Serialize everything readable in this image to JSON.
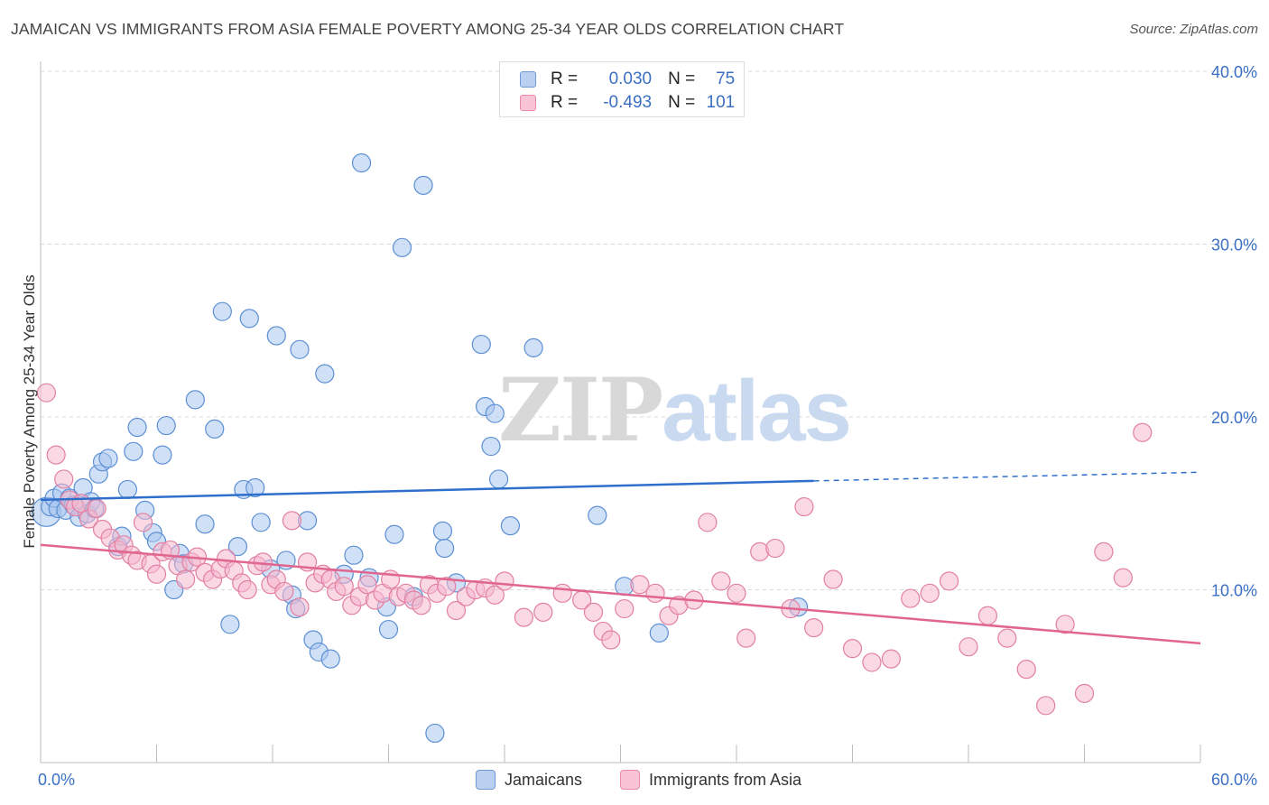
{
  "title": "JAMAICAN VS IMMIGRANTS FROM ASIA FEMALE POVERTY AMONG 25-34 YEAR OLDS CORRELATION CHART",
  "source": "Source: ZipAtlas.com",
  "watermark": {
    "zip": "ZIP",
    "atlas": "atlas"
  },
  "legend": {
    "r_label": "R =",
    "n_label": "N =",
    "rows": [
      {
        "r": "0.030",
        "n": "75",
        "fill": "#b9d0f0",
        "stroke": "#6f9ad6"
      },
      {
        "r": "-0.493",
        "n": "101",
        "fill": "#f8c4d6",
        "stroke": "#e88aab"
      }
    ]
  },
  "bottom_legend": [
    "Jamaicans",
    "Immigrants from Asia"
  ],
  "colors": {
    "jamaicans_fill": "#a9c6ee",
    "jamaicans_stroke": "#5b8fd4",
    "asia_fill": "#f6b8cd",
    "asia_stroke": "#e27fa3",
    "jamaicans_line": "#2f6fcc",
    "asia_line": "#e0668f",
    "tick_text": "#3a6fc4"
  },
  "chart_data": {
    "type": "scatter",
    "title": "JAMAICAN VS IMMIGRANTS FROM ASIA FEMALE POVERTY AMONG 25-34 YEAR OLDS CORRELATION CHART",
    "xlabel": "",
    "ylabel": "Female Poverty Among 25-34 Year Olds",
    "xlim": [
      0,
      60
    ],
    "ylim": [
      0,
      42
    ],
    "x_tick_labels": [
      {
        "value": 0,
        "label": "0.0%"
      },
      {
        "value": 60,
        "label": "60.0%"
      }
    ],
    "y_tick_labels": [
      {
        "value": 10,
        "label": "10.0%"
      },
      {
        "value": 20,
        "label": "20.0%"
      },
      {
        "value": 30,
        "label": "30.0%"
      },
      {
        "value": 40,
        "label": "40.0%"
      }
    ],
    "grid": true,
    "legend_position": "top-center",
    "series": [
      {
        "name": "Jamaicans",
        "R": 0.03,
        "N": 75,
        "trend": {
          "x0": 0,
          "y0": 15.2,
          "x1": 40,
          "y1": 16.3,
          "dashed_to": 60,
          "y_dashed_end": 16.8
        },
        "points": [
          [
            0.3,
            14.5
          ],
          [
            0.5,
            14.8
          ],
          [
            0.7,
            15.3
          ],
          [
            0.9,
            14.7
          ],
          [
            1.1,
            15.6
          ],
          [
            1.3,
            14.6
          ],
          [
            1.5,
            15.3
          ],
          [
            1.7,
            14.9
          ],
          [
            2.0,
            14.2
          ],
          [
            2.2,
            15.9
          ],
          [
            2.4,
            14.4
          ],
          [
            2.6,
            15.1
          ],
          [
            2.8,
            14.7
          ],
          [
            3.0,
            16.7
          ],
          [
            3.2,
            17.4
          ],
          [
            3.5,
            17.6
          ],
          [
            4.0,
            12.5
          ],
          [
            4.2,
            13.1
          ],
          [
            4.5,
            15.8
          ],
          [
            4.8,
            18.0
          ],
          [
            5.0,
            19.4
          ],
          [
            5.4,
            14.6
          ],
          [
            5.8,
            13.3
          ],
          [
            6.0,
            12.8
          ],
          [
            6.3,
            17.8
          ],
          [
            6.5,
            19.5
          ],
          [
            6.9,
            10.0
          ],
          [
            7.2,
            12.1
          ],
          [
            7.4,
            11.5
          ],
          [
            8.0,
            21.0
          ],
          [
            8.5,
            13.8
          ],
          [
            9.0,
            19.3
          ],
          [
            9.4,
            26.1
          ],
          [
            9.8,
            8.0
          ],
          [
            10.2,
            12.5
          ],
          [
            10.5,
            15.8
          ],
          [
            10.8,
            25.7
          ],
          [
            11.1,
            15.9
          ],
          [
            11.4,
            13.9
          ],
          [
            11.9,
            11.2
          ],
          [
            12.2,
            24.7
          ],
          [
            12.7,
            11.7
          ],
          [
            13.0,
            9.7
          ],
          [
            13.2,
            8.9
          ],
          [
            13.4,
            23.9
          ],
          [
            13.8,
            14.0
          ],
          [
            14.1,
            7.1
          ],
          [
            14.4,
            6.4
          ],
          [
            14.7,
            22.5
          ],
          [
            15.0,
            6.0
          ],
          [
            15.7,
            10.9
          ],
          [
            16.2,
            12.0
          ],
          [
            16.6,
            34.7
          ],
          [
            17.0,
            10.7
          ],
          [
            17.9,
            9.0
          ],
          [
            18.0,
            7.7
          ],
          [
            18.3,
            13.2
          ],
          [
            18.7,
            29.8
          ],
          [
            19.3,
            9.6
          ],
          [
            19.8,
            33.4
          ],
          [
            20.4,
            1.7
          ],
          [
            20.8,
            13.4
          ],
          [
            20.9,
            12.4
          ],
          [
            21.5,
            10.4
          ],
          [
            22.8,
            24.2
          ],
          [
            23.0,
            20.6
          ],
          [
            23.3,
            18.3
          ],
          [
            23.5,
            20.2
          ],
          [
            23.7,
            16.4
          ],
          [
            24.3,
            13.7
          ],
          [
            25.5,
            24.0
          ],
          [
            28.8,
            14.3
          ],
          [
            30.2,
            10.2
          ],
          [
            32.0,
            7.5
          ],
          [
            39.2,
            9.0
          ]
        ]
      },
      {
        "name": "Immigrants from Asia",
        "R": -0.493,
        "N": 101,
        "trend": {
          "x0": 0,
          "y0": 12.6,
          "x1": 60,
          "y1": 6.9
        },
        "points": [
          [
            0.3,
            21.4
          ],
          [
            0.8,
            17.8
          ],
          [
            1.2,
            16.4
          ],
          [
            1.5,
            15.2
          ],
          [
            1.8,
            14.8
          ],
          [
            2.1,
            15.0
          ],
          [
            2.5,
            14.1
          ],
          [
            2.9,
            14.7
          ],
          [
            3.2,
            13.5
          ],
          [
            3.6,
            13.0
          ],
          [
            4.0,
            12.3
          ],
          [
            4.3,
            12.6
          ],
          [
            4.7,
            12.0
          ],
          [
            5.0,
            11.7
          ],
          [
            5.3,
            13.9
          ],
          [
            5.7,
            11.5
          ],
          [
            6.0,
            10.9
          ],
          [
            6.3,
            12.2
          ],
          [
            6.7,
            12.3
          ],
          [
            7.1,
            11.4
          ],
          [
            7.5,
            10.6
          ],
          [
            7.8,
            11.6
          ],
          [
            8.1,
            11.9
          ],
          [
            8.5,
            11.0
          ],
          [
            8.9,
            10.6
          ],
          [
            9.3,
            11.2
          ],
          [
            9.6,
            11.8
          ],
          [
            10.0,
            11.1
          ],
          [
            10.4,
            10.4
          ],
          [
            10.7,
            10.0
          ],
          [
            11.2,
            11.4
          ],
          [
            11.5,
            11.6
          ],
          [
            11.9,
            10.3
          ],
          [
            12.2,
            10.6
          ],
          [
            12.6,
            9.9
          ],
          [
            13.0,
            14.0
          ],
          [
            13.4,
            9.0
          ],
          [
            13.8,
            11.6
          ],
          [
            14.2,
            10.4
          ],
          [
            14.6,
            10.9
          ],
          [
            15.0,
            10.6
          ],
          [
            15.3,
            9.9
          ],
          [
            15.7,
            10.2
          ],
          [
            16.1,
            9.1
          ],
          [
            16.5,
            9.6
          ],
          [
            16.9,
            10.3
          ],
          [
            17.3,
            9.4
          ],
          [
            17.7,
            9.8
          ],
          [
            18.1,
            10.6
          ],
          [
            18.5,
            9.6
          ],
          [
            18.9,
            9.8
          ],
          [
            19.3,
            9.4
          ],
          [
            19.7,
            9.1
          ],
          [
            20.1,
            10.3
          ],
          [
            20.5,
            9.8
          ],
          [
            21.0,
            10.2
          ],
          [
            21.5,
            8.8
          ],
          [
            22.0,
            9.6
          ],
          [
            22.5,
            10.0
          ],
          [
            23.0,
            10.1
          ],
          [
            23.5,
            9.7
          ],
          [
            24.0,
            10.5
          ],
          [
            25.0,
            8.4
          ],
          [
            26.0,
            8.7
          ],
          [
            27.0,
            9.8
          ],
          [
            28.0,
            9.4
          ],
          [
            28.6,
            8.7
          ],
          [
            29.1,
            7.6
          ],
          [
            29.5,
            7.1
          ],
          [
            30.2,
            8.9
          ],
          [
            31.0,
            10.3
          ],
          [
            31.8,
            9.8
          ],
          [
            32.5,
            8.5
          ],
          [
            33.0,
            9.1
          ],
          [
            33.8,
            9.4
          ],
          [
            34.5,
            13.9
          ],
          [
            35.2,
            10.5
          ],
          [
            36.0,
            9.8
          ],
          [
            36.5,
            7.2
          ],
          [
            37.2,
            12.2
          ],
          [
            38.0,
            12.4
          ],
          [
            38.8,
            8.9
          ],
          [
            39.5,
            14.8
          ],
          [
            40.0,
            7.8
          ],
          [
            41.0,
            10.6
          ],
          [
            42.0,
            6.6
          ],
          [
            43.0,
            5.8
          ],
          [
            44.0,
            6.0
          ],
          [
            45.0,
            9.5
          ],
          [
            46.0,
            9.8
          ],
          [
            47.0,
            10.5
          ],
          [
            48.0,
            6.7
          ],
          [
            49.0,
            8.5
          ],
          [
            50.0,
            7.2
          ],
          [
            51.0,
            5.4
          ],
          [
            52.0,
            3.3
          ],
          [
            53.0,
            8.0
          ],
          [
            54.0,
            4.0
          ],
          [
            55.0,
            12.2
          ],
          [
            56.0,
            10.7
          ],
          [
            57.0,
            19.1
          ]
        ]
      }
    ]
  }
}
